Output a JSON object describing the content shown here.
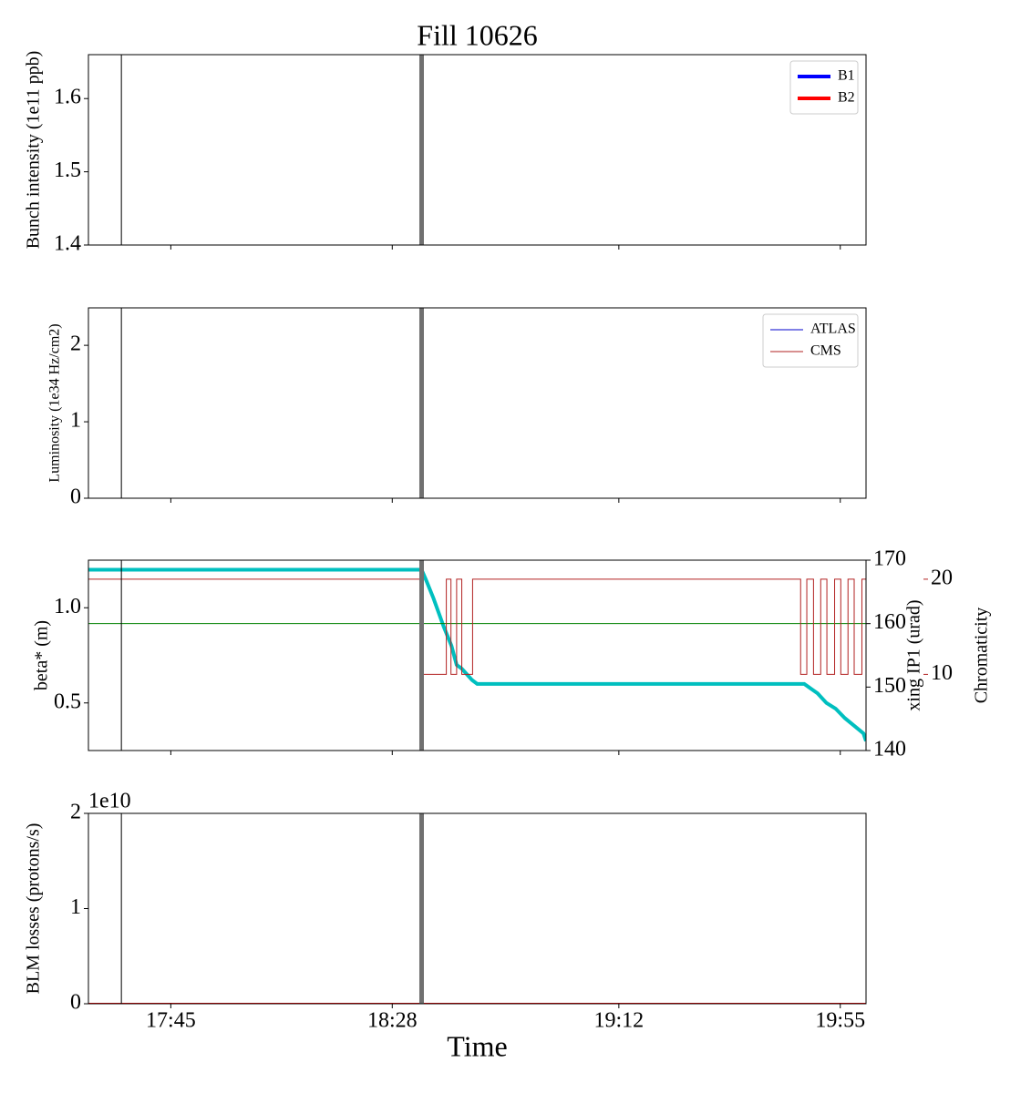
{
  "chart_data": [
    {
      "type": "line",
      "title": "Fill 10626",
      "ylabel": "Bunch intensity (1e11 ppb)",
      "xlim": [
        1049,
        1200
      ],
      "xticks": [
        1065,
        1108,
        1152,
        1195
      ],
      "ylim": [
        1.4,
        1.66
      ],
      "yticks": [
        1.4,
        1.5,
        1.6
      ],
      "vlines": [
        1055.4,
        1113.7
      ],
      "legend": "upper right",
      "series": [
        {
          "name": "B1",
          "color": "#0000ff",
          "line_width": 4,
          "x": [],
          "values": []
        },
        {
          "name": "B2",
          "color": "#ff0000",
          "line_width": 4,
          "x": [],
          "values": []
        }
      ]
    },
    {
      "type": "line",
      "ylabel": "Luminosity (1e34 Hz/cm2)",
      "xlim": [
        1049,
        1200
      ],
      "xticks": [
        1065,
        1108,
        1152,
        1195
      ],
      "ylim": [
        0,
        2.49
      ],
      "yticks": [
        0,
        1,
        2
      ],
      "vlines": [
        1055.4,
        1113.7
      ],
      "legend": "upper right",
      "series": [
        {
          "name": "ATLAS",
          "color": "#0000cc",
          "line_width": 1,
          "x": [
            1049,
            1200
          ],
          "values": [
            0,
            0
          ]
        },
        {
          "name": "CMS",
          "color": "#b22222",
          "line_width": 1,
          "x": [
            1052,
            1200
          ],
          "values": [
            0,
            0
          ]
        }
      ]
    },
    {
      "type": "line",
      "ylabel": "beta* (m)",
      "y2label": "xing IP1 (urad)",
      "y3label": "Chromaticity",
      "xlim": [
        1049,
        1200
      ],
      "xticks": [
        1065,
        1108,
        1152,
        1195
      ],
      "ylim": [
        0.25,
        1.25
      ],
      "yticks": [
        0.5,
        {
          "value": 1,
          "label": "1.0"
        }
      ],
      "y2lim": [
        140,
        170
      ],
      "y2ticks": [
        140,
        150,
        160,
        170
      ],
      "y3lim": [
        2,
        22
      ],
      "y3ticks": [
        10,
        20
      ],
      "vlines": [
        1055.4,
        1113.7
      ],
      "series": [
        {
          "color": "#00bfbf",
          "line_width": 4,
          "x": [
            1049,
            1113.7,
            1114.5,
            1116,
            1118,
            1119.5,
            1120.5,
            1121.5,
            1122.5,
            1123.5,
            1124.5,
            1188,
            1190.6,
            1192.3,
            1194.1,
            1195.9,
            1197.7,
            1199.5,
            1200
          ],
          "values": [
            1.2,
            1.2,
            1.15,
            1.05,
            0.9,
            0.8,
            0.7,
            0.68,
            0.65,
            0.62,
            0.6,
            0.6,
            0.55,
            0.5,
            0.47,
            0.42,
            0.38,
            0.34,
            0.3
          ]
        },
        {
          "color": "#008000",
          "line_width": 1,
          "axis": "y2",
          "x": [
            1049,
            1200
          ],
          "values": [
            160,
            160
          ]
        },
        {
          "color": "#b22222",
          "line_width": 1,
          "axis": "y3",
          "step": true,
          "x": [
            1049,
            1113.7,
            1118.5,
            1119.4,
            1120.5,
            1121.5,
            1123.6,
            1187.3,
            1188.5,
            1189.8,
            1191.2,
            1192.4,
            1193.9,
            1195.1,
            1196.5,
            1197.7,
            1199.2,
            1200
          ],
          "values": [
            20,
            10,
            20,
            10,
            20,
            10,
            20,
            10,
            20,
            10,
            20,
            10,
            20,
            10,
            20,
            10,
            20,
            10
          ]
        }
      ]
    },
    {
      "type": "line",
      "ylabel": "BLM losses (protons/s)",
      "xlabel": "Time",
      "offset_text": "1e10",
      "xlim": [
        1049,
        1200
      ],
      "xticks": [
        {
          "value": 1065,
          "label": "17:45"
        },
        {
          "value": 1108,
          "label": "18:28"
        },
        {
          "value": 1152,
          "label": "19:12"
        },
        {
          "value": 1195,
          "label": "19:55"
        }
      ],
      "ylim": [
        0,
        20000000000
      ],
      "yticks": [
        0,
        {
          "value": 10000000000,
          "label": "1"
        },
        {
          "value": 20000000000,
          "label": "2"
        }
      ],
      "vlines": [
        1055.4,
        1113.7
      ],
      "series": [
        {
          "color": "#ff0000",
          "line_width": 2,
          "x": [
            1049,
            1200
          ],
          "values": [
            0,
            0
          ]
        }
      ]
    }
  ]
}
